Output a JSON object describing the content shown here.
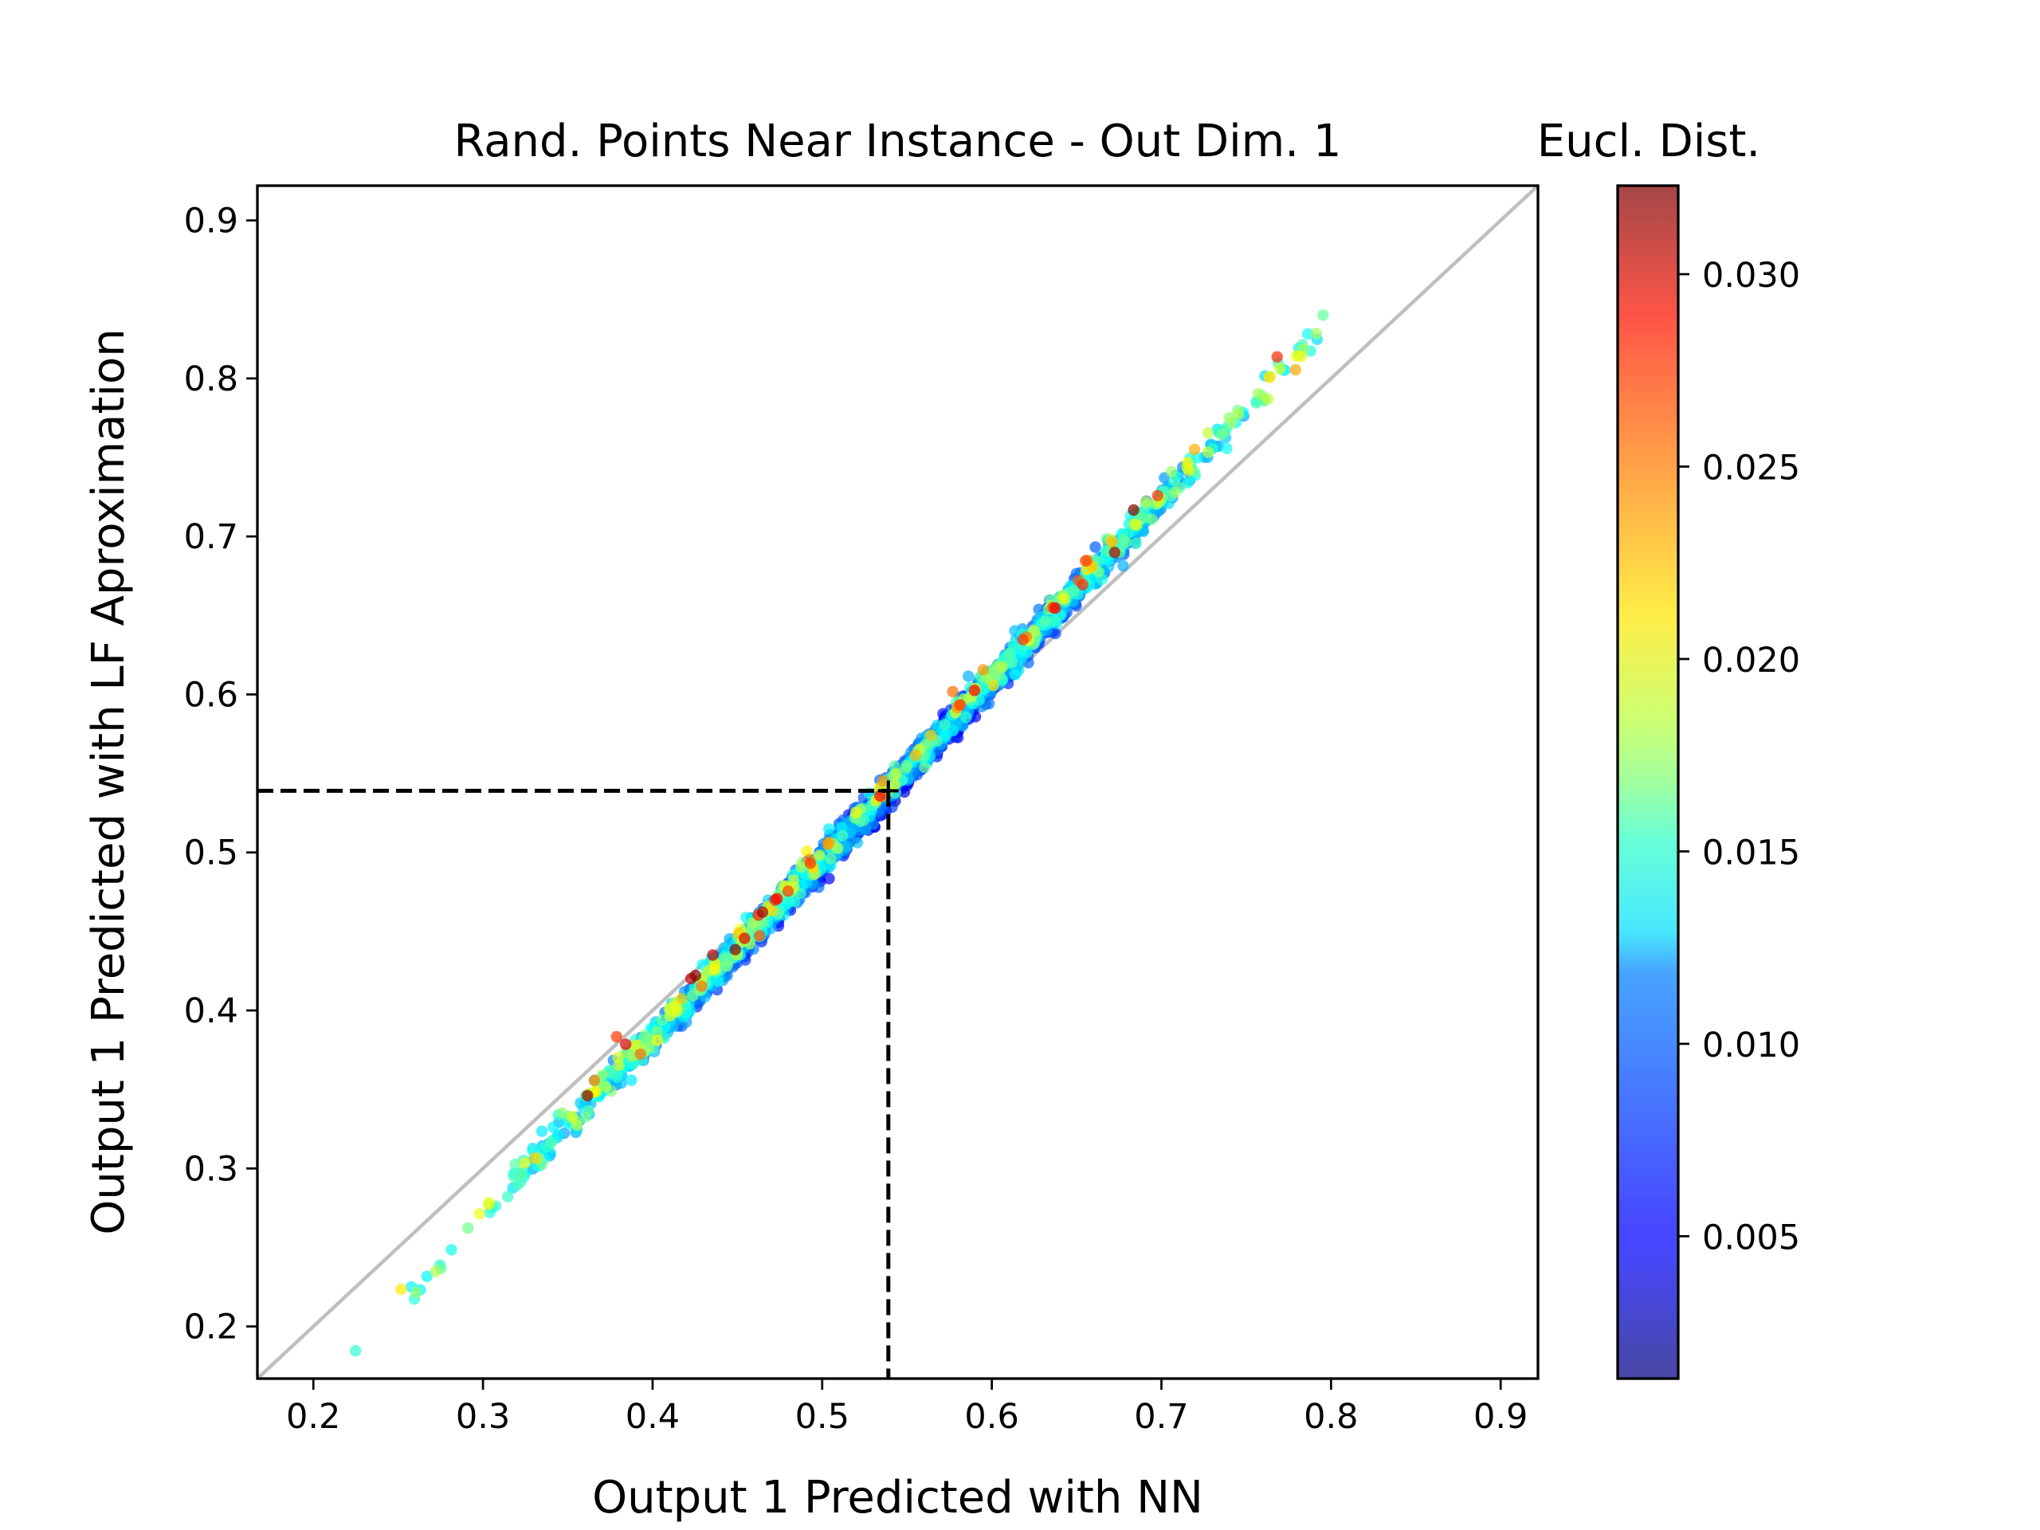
{
  "chart_data": {
    "type": "scatter",
    "title": "Rand. Points Near Instance - Out Dim. 1",
    "xlabel": "Output 1 Predicted with NN",
    "ylabel": "Output 1 Predicted with LF Aproximation",
    "xlim": [
      0.167,
      0.922
    ],
    "ylim": [
      0.167,
      0.922
    ],
    "x_ticks": [
      "0.2",
      "0.3",
      "0.4",
      "0.5",
      "0.6",
      "0.7",
      "0.8",
      "0.9"
    ],
    "y_ticks": [
      "0.2",
      "0.3",
      "0.4",
      "0.5",
      "0.6",
      "0.7",
      "0.8",
      "0.9"
    ],
    "grid": false,
    "identity_line": true,
    "instance": {
      "x": 0.539,
      "y": 0.539
    },
    "trend": {
      "slope": 1.133,
      "intercept": -0.071,
      "x_range": [
        0.22,
        0.8
      ]
    },
    "point_count": 2400,
    "colorbar": {
      "title": "Eucl. Dist.",
      "range": [
        0.0013,
        0.0323
      ],
      "ticks": [
        "0.005",
        "0.010",
        "0.015",
        "0.020",
        "0.025",
        "0.030"
      ],
      "colormap": "jet",
      "alpha": 0.7
    }
  }
}
